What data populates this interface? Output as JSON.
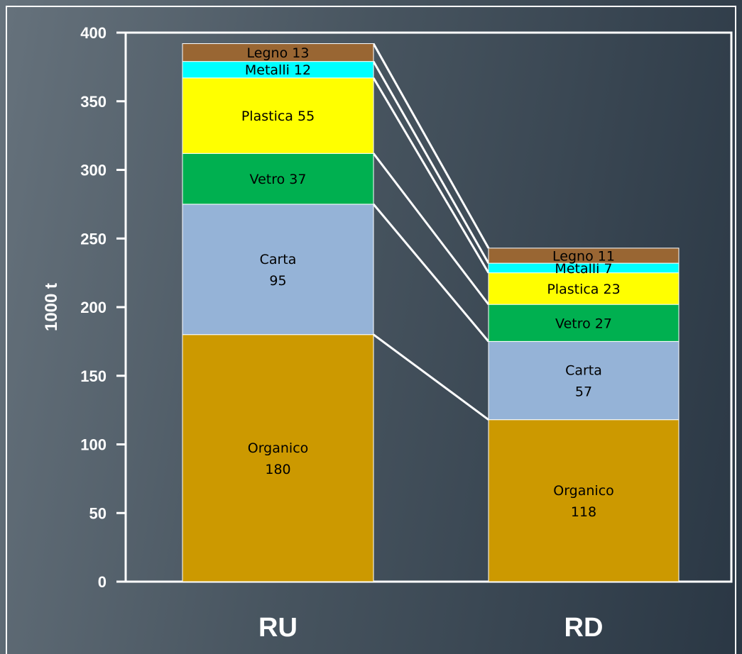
{
  "chart_data": {
    "type": "bar",
    "stacked": true,
    "categories": [
      "RU",
      "RD"
    ],
    "ylabel": "1000 t",
    "ylim": [
      0,
      400
    ],
    "yticks": [
      0,
      50,
      100,
      150,
      200,
      250,
      300,
      350,
      400
    ],
    "series": [
      {
        "name": "Organico",
        "color": "#cc9900",
        "values": [
          180,
          118
        ],
        "labels": [
          "Organico\n180",
          "Organico\n118"
        ]
      },
      {
        "name": "Carta",
        "color": "#95b3d7",
        "values": [
          95,
          57
        ],
        "labels": [
          "Carta\n95",
          "Carta\n57"
        ]
      },
      {
        "name": "Vetro",
        "color": "#00b050",
        "values": [
          37,
          27
        ],
        "labels": [
          "Vetro  37",
          "Vetro  27"
        ]
      },
      {
        "name": "Plastica",
        "color": "#ffff00",
        "values": [
          55,
          23
        ],
        "labels": [
          "Plastica  55",
          "Plastica  23"
        ]
      },
      {
        "name": "Metalli",
        "color": "#00ffff",
        "values": [
          12,
          7
        ],
        "labels": [
          "Metalli  12",
          "Metalli  7"
        ]
      },
      {
        "name": "Legno",
        "color": "#996633",
        "values": [
          13,
          11
        ],
        "labels": [
          "Legno  13",
          "Legno  11"
        ]
      }
    ],
    "grid": false,
    "legend": "none",
    "connector_lines": true
  }
}
